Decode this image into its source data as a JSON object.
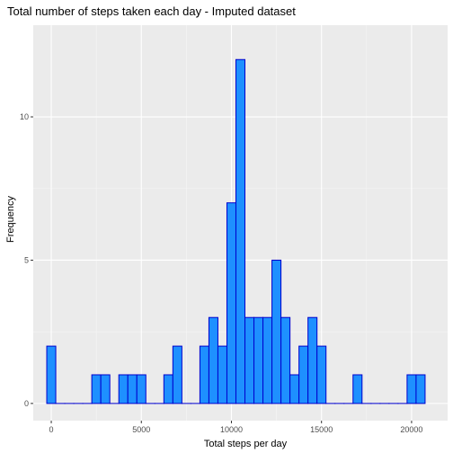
{
  "chart_data": {
    "type": "bar",
    "title": "Total number of steps taken each day - Imputed dataset",
    "xlabel": "Total steps per day",
    "ylabel": "Frequency",
    "xlim": [
      -1000,
      22000
    ],
    "ylim": [
      -0.6,
      13.2
    ],
    "x_ticks": [
      0,
      5000,
      10000,
      15000,
      20000
    ],
    "x_tick_labels": [
      "0",
      "5000",
      "10000",
      "15000",
      "20000"
    ],
    "y_ticks": [
      0,
      5,
      10
    ],
    "y_tick_labels": [
      "0",
      "5",
      "10"
    ],
    "bin_width": 500,
    "bins": [
      {
        "x": 0,
        "count": 2
      },
      {
        "x": 500,
        "count": 0
      },
      {
        "x": 1000,
        "count": 0
      },
      {
        "x": 1500,
        "count": 0
      },
      {
        "x": 2000,
        "count": 0
      },
      {
        "x": 2500,
        "count": 1
      },
      {
        "x": 3000,
        "count": 1
      },
      {
        "x": 3500,
        "count": 0
      },
      {
        "x": 4000,
        "count": 1
      },
      {
        "x": 4500,
        "count": 1
      },
      {
        "x": 5000,
        "count": 1
      },
      {
        "x": 5500,
        "count": 0
      },
      {
        "x": 6000,
        "count": 0
      },
      {
        "x": 6500,
        "count": 1
      },
      {
        "x": 7000,
        "count": 2
      },
      {
        "x": 7500,
        "count": 0
      },
      {
        "x": 8000,
        "count": 0
      },
      {
        "x": 8500,
        "count": 2
      },
      {
        "x": 9000,
        "count": 3
      },
      {
        "x": 9500,
        "count": 2
      },
      {
        "x": 10000,
        "count": 7
      },
      {
        "x": 10500,
        "count": 12
      },
      {
        "x": 11000,
        "count": 3
      },
      {
        "x": 11500,
        "count": 3
      },
      {
        "x": 12000,
        "count": 3
      },
      {
        "x": 12500,
        "count": 5
      },
      {
        "x": 13000,
        "count": 3
      },
      {
        "x": 13500,
        "count": 1
      },
      {
        "x": 14000,
        "count": 2
      },
      {
        "x": 14500,
        "count": 3
      },
      {
        "x": 15000,
        "count": 2
      },
      {
        "x": 15500,
        "count": 0
      },
      {
        "x": 16000,
        "count": 0
      },
      {
        "x": 16500,
        "count": 0
      },
      {
        "x": 17000,
        "count": 1
      },
      {
        "x": 17500,
        "count": 0
      },
      {
        "x": 18000,
        "count": 0
      },
      {
        "x": 18500,
        "count": 0
      },
      {
        "x": 19000,
        "count": 0
      },
      {
        "x": 19500,
        "count": 0
      },
      {
        "x": 20000,
        "count": 1
      },
      {
        "x": 20500,
        "count": 1
      }
    ],
    "grid": true,
    "colors": {
      "panel": "#ebebeb",
      "grid_major": "#ffffff",
      "grid_minor": "#f5f5f5",
      "bar_fill": "#1e90ff",
      "bar_outline": "#0000cd"
    }
  }
}
